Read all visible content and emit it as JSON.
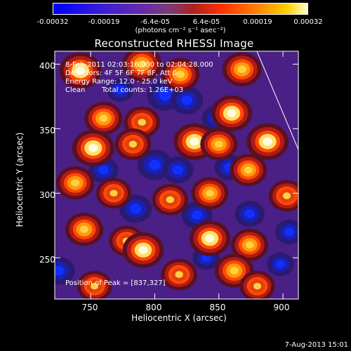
{
  "colorbar": {
    "ticks": [
      "-0.00032",
      "-0.00019",
      "-6.4e-05",
      "6.4e-05",
      "0.00019",
      "0.00032"
    ],
    "unit_text": "(photons cm⁻² s⁻¹ asec⁻²)",
    "range": [
      -0.00032,
      0.00032
    ]
  },
  "info": {
    "line1": "8-Feb-2011 02:03:16.000 to 02:04:28.000",
    "line2": "Detectors: 4F 5F 6F 7F 8F, Att 0",
    "line3": "Energy Range: 12.0 - 25.0 keV",
    "line4_left": "Clean",
    "line4_right": "Total counts: 1.26E+03",
    "peak": "Position of Peak = [837,327]"
  },
  "footer": {
    "date": "7-Aug-2013 15:01"
  },
  "chart_data": {
    "type": "heatmap",
    "title": "Reconstructed RHESSI Image",
    "xlabel": "Heliocentric X (arcsec)",
    "ylabel": "Heliocentric Y (arcsec)",
    "xlim": [
      722,
      912
    ],
    "ylim": [
      218,
      410
    ],
    "x_ticks": [
      750,
      800,
      850,
      900
    ],
    "y_ticks": [
      250,
      300,
      350,
      400
    ],
    "peak_position": [
      837,
      327
    ],
    "hotspots": [
      {
        "x": 742,
        "y": 395,
        "v": 0.3
      },
      {
        "x": 790,
        "y": 400,
        "v": 0.25
      },
      {
        "x": 820,
        "y": 392,
        "v": 0.22
      },
      {
        "x": 868,
        "y": 396,
        "v": 0.24
      },
      {
        "x": 760,
        "y": 358,
        "v": 0.22
      },
      {
        "x": 790,
        "y": 355,
        "v": 0.18
      },
      {
        "x": 860,
        "y": 362,
        "v": 0.28
      },
      {
        "x": 752,
        "y": 335,
        "v": 0.3
      },
      {
        "x": 783,
        "y": 338,
        "v": 0.18
      },
      {
        "x": 831,
        "y": 340,
        "v": 0.3
      },
      {
        "x": 850,
        "y": 338,
        "v": 0.2
      },
      {
        "x": 888,
        "y": 340,
        "v": 0.3
      },
      {
        "x": 873,
        "y": 318,
        "v": 0.2
      },
      {
        "x": 738,
        "y": 308,
        "v": 0.22
      },
      {
        "x": 768,
        "y": 300,
        "v": 0.16
      },
      {
        "x": 843,
        "y": 300,
        "v": 0.2
      },
      {
        "x": 812,
        "y": 295,
        "v": 0.18
      },
      {
        "x": 903,
        "y": 298,
        "v": 0.18
      },
      {
        "x": 745,
        "y": 272,
        "v": 0.22
      },
      {
        "x": 778,
        "y": 263,
        "v": 0.16
      },
      {
        "x": 843,
        "y": 265,
        "v": 0.28
      },
      {
        "x": 874,
        "y": 260,
        "v": 0.2
      },
      {
        "x": 791,
        "y": 256,
        "v": 0.28
      },
      {
        "x": 819,
        "y": 237,
        "v": 0.18
      },
      {
        "x": 862,
        "y": 240,
        "v": 0.24
      },
      {
        "x": 880,
        "y": 228,
        "v": 0.16
      },
      {
        "x": 753,
        "y": 228,
        "v": 0.16
      }
    ],
    "coldspots": [
      {
        "x": 808,
        "y": 376,
        "v": -0.25
      },
      {
        "x": 825,
        "y": 372,
        "v": -0.2
      },
      {
        "x": 848,
        "y": 358,
        "v": -0.15
      },
      {
        "x": 800,
        "y": 322,
        "v": -0.24
      },
      {
        "x": 785,
        "y": 288,
        "v": -0.2
      },
      {
        "x": 818,
        "y": 318,
        "v": -0.18
      },
      {
        "x": 773,
        "y": 380,
        "v": -0.12
      },
      {
        "x": 760,
        "y": 318,
        "v": -0.16
      },
      {
        "x": 725,
        "y": 240,
        "v": -0.2
      },
      {
        "x": 833,
        "y": 283,
        "v": -0.18
      },
      {
        "x": 874,
        "y": 284,
        "v": -0.16
      },
      {
        "x": 905,
        "y": 270,
        "v": -0.14
      },
      {
        "x": 858,
        "y": 320,
        "v": -0.15
      },
      {
        "x": 840,
        "y": 250,
        "v": -0.12
      },
      {
        "x": 898,
        "y": 245,
        "v": -0.12
      }
    ]
  }
}
